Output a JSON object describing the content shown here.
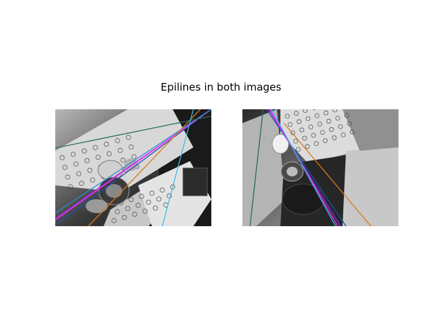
{
  "title": "Epilines in both images",
  "chart_data": {
    "type": "line",
    "title": "Epilines in both images",
    "axes_visible": false,
    "image_mode": "grayscale photograph (calibration board with circle grid and object)",
    "panels": [
      {
        "name": "left-image",
        "epilines": [
          {
            "color": "#1e4fa8",
            "x": [
              0,
              226
            ],
            "y": [
              168,
              0
            ]
          },
          {
            "color": "#8a2be2",
            "x": [
              0,
              226
            ],
            "y": [
              158,
              0
            ]
          },
          {
            "color": "#ff33ff",
            "x": [
              0,
              226
            ],
            "y": [
              160,
              0
            ]
          },
          {
            "color": "#2f8fcf",
            "x": [
              0,
              226
            ],
            "y": [
              150,
              0
            ]
          },
          {
            "color": "#d97a1a",
            "x": [
              48,
              210
            ],
            "y": [
              169,
              0
            ]
          },
          {
            "color": "#2a6b5a",
            "x": [
              0,
              226
            ],
            "y": [
              56,
              10
            ]
          },
          {
            "color": "#3fb8e8",
            "x": [
              155,
              200
            ],
            "y": [
              169,
              0
            ]
          }
        ]
      },
      {
        "name": "right-image",
        "epilines": [
          {
            "color": "#1e4fa8",
            "x": [
              35,
              150
            ],
            "y": [
              0,
              169
            ]
          },
          {
            "color": "#8a2be2",
            "x": [
              38,
              142
            ],
            "y": [
              0,
              169
            ]
          },
          {
            "color": "#ff33ff",
            "x": [
              40,
              138
            ],
            "y": [
              0,
              169
            ]
          },
          {
            "color": "#3fb8e8",
            "x": [
              42,
              135
            ],
            "y": [
              0,
              169
            ]
          },
          {
            "color": "#d97a1a",
            "x": [
              60,
              186
            ],
            "y": [
              20,
              169
            ]
          },
          {
            "color": "#2a6b5a",
            "x": [
              30,
              11
            ],
            "y": [
              0,
              169
            ]
          }
        ]
      }
    ]
  }
}
